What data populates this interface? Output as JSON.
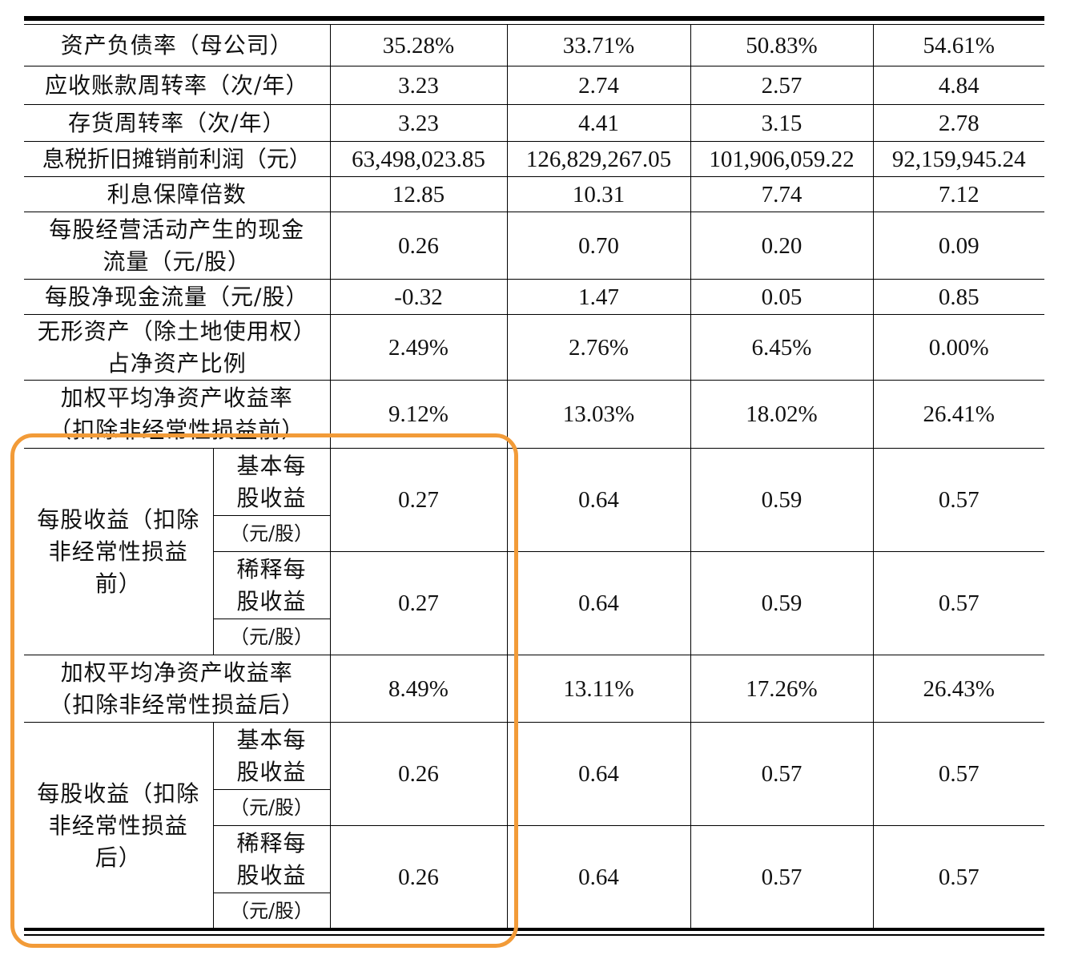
{
  "rows": [
    {
      "label": "资产负债率（母公司）",
      "values": [
        "35.28%",
        "33.71%",
        "50.83%",
        "54.61%"
      ]
    },
    {
      "label": "应收账款周转率（次/年）",
      "values": [
        "3.23",
        "2.74",
        "2.57",
        "4.84"
      ]
    },
    {
      "label": "存货周转率（次/年）",
      "values": [
        "3.23",
        "4.41",
        "3.15",
        "2.78"
      ]
    },
    {
      "label": "息税折旧摊销前利润（元）",
      "values": [
        "63,498,023.85",
        "126,829,267.05",
        "101,906,059.22",
        "92,159,945.24"
      ]
    },
    {
      "label": "利息保障倍数",
      "values": [
        "12.85",
        "10.31",
        "7.74",
        "7.12"
      ]
    },
    {
      "label_line1": "每股经营活动产生的现金",
      "label_line2": "流量（元/股）",
      "values": [
        "0.26",
        "0.70",
        "0.20",
        "0.09"
      ]
    },
    {
      "label": "每股净现金流量（元/股）",
      "values": [
        "-0.32",
        "1.47",
        "0.05",
        "0.85"
      ]
    },
    {
      "label_line1": "无形资产（除土地使用权）",
      "label_line2": "占净资产比例",
      "values": [
        "2.49%",
        "2.76%",
        "6.45%",
        "0.00%"
      ]
    },
    {
      "label_line1": "加权平均净资产收益率",
      "label_line2": "（扣除非经常性损益前）",
      "values": [
        "9.12%",
        "13.03%",
        "18.02%",
        "26.41%"
      ]
    }
  ],
  "eps_before": {
    "group_line1": "每股收益（扣除",
    "group_line2": "非经常性损益",
    "group_line3": "前）",
    "basic": {
      "line1": "基本每",
      "line2": "股收益",
      "unit": "（元/股）",
      "values": [
        "0.27",
        "0.64",
        "0.59",
        "0.57"
      ]
    },
    "diluted": {
      "line1": "稀释每",
      "line2": "股收益",
      "unit": "（元/股）",
      "values": [
        "0.27",
        "0.64",
        "0.59",
        "0.57"
      ]
    }
  },
  "roe_after": {
    "label_line1": "加权平均净资产收益率",
    "label_line2": "（扣除非经常性损益后）",
    "values": [
      "8.49%",
      "13.11%",
      "17.26%",
      "26.43%"
    ]
  },
  "eps_after": {
    "group_line1": "每股收益（扣除",
    "group_line2": "非经常性损益",
    "group_line3": "后）",
    "basic": {
      "line1": "基本每",
      "line2": "股收益",
      "unit": "（元/股）",
      "values": [
        "0.26",
        "0.64",
        "0.57",
        "0.57"
      ]
    },
    "diluted": {
      "line1": "稀释每",
      "line2": "股收益",
      "unit": "（元/股）",
      "values": [
        "0.26",
        "0.64",
        "0.57",
        "0.57"
      ]
    }
  },
  "highlight_color": "#f29b38"
}
